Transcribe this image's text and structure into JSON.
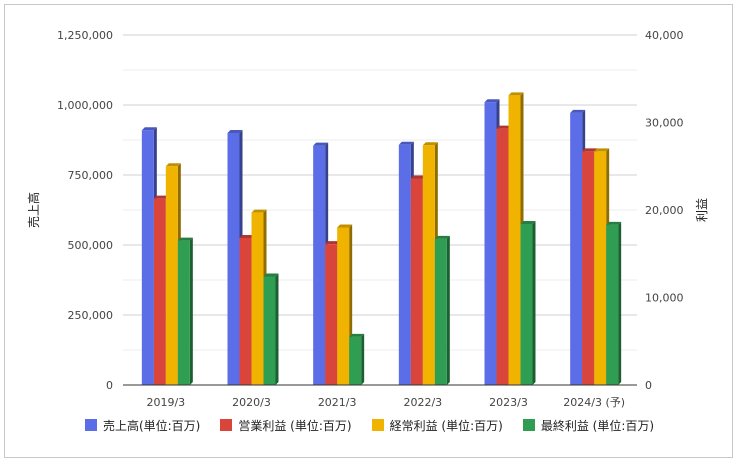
{
  "chart_data": {
    "type": "bar",
    "categories": [
      "2019/3",
      "2020/3",
      "2021/3",
      "2022/3",
      "2023/3",
      "2024/3 (予)"
    ],
    "left_axis": {
      "label": "売上高",
      "ylim": [
        0,
        1250000
      ],
      "ticks": [
        0,
        250000,
        500000,
        750000,
        1000000,
        1250000
      ],
      "tick_labels": [
        "0",
        "250,000",
        "500,000",
        "750,000",
        "1,000,000",
        "1,250,000"
      ]
    },
    "right_axis": {
      "label": "利益",
      "ylim": [
        0,
        40000
      ],
      "ticks": [
        0,
        10000,
        20000,
        30000,
        40000
      ],
      "tick_labels": [
        "0",
        "10,000",
        "20,000",
        "30,000",
        "40,000"
      ]
    },
    "series": [
      {
        "name": "売上高(単位:百万)",
        "axis": "left",
        "color": "#5b6ee8",
        "values": [
          910000,
          900000,
          855000,
          858000,
          1010000,
          972000
        ]
      },
      {
        "name": "営業利益 (単位:百万)",
        "axis": "right",
        "color": "#d9453b",
        "values": [
          21300,
          16800,
          16100,
          23600,
          29300,
          26700
        ]
      },
      {
        "name": "経常利益 (単位:百万)",
        "axis": "right",
        "color": "#f0b400",
        "values": [
          25000,
          19700,
          18000,
          27400,
          33100,
          26700
        ]
      },
      {
        "name": "最終利益 (単位:百万)",
        "axis": "right",
        "color": "#2f9e52",
        "values": [
          16500,
          12400,
          5500,
          16700,
          18400,
          18300
        ]
      }
    ],
    "grid": true,
    "legend_position": "bottom"
  }
}
